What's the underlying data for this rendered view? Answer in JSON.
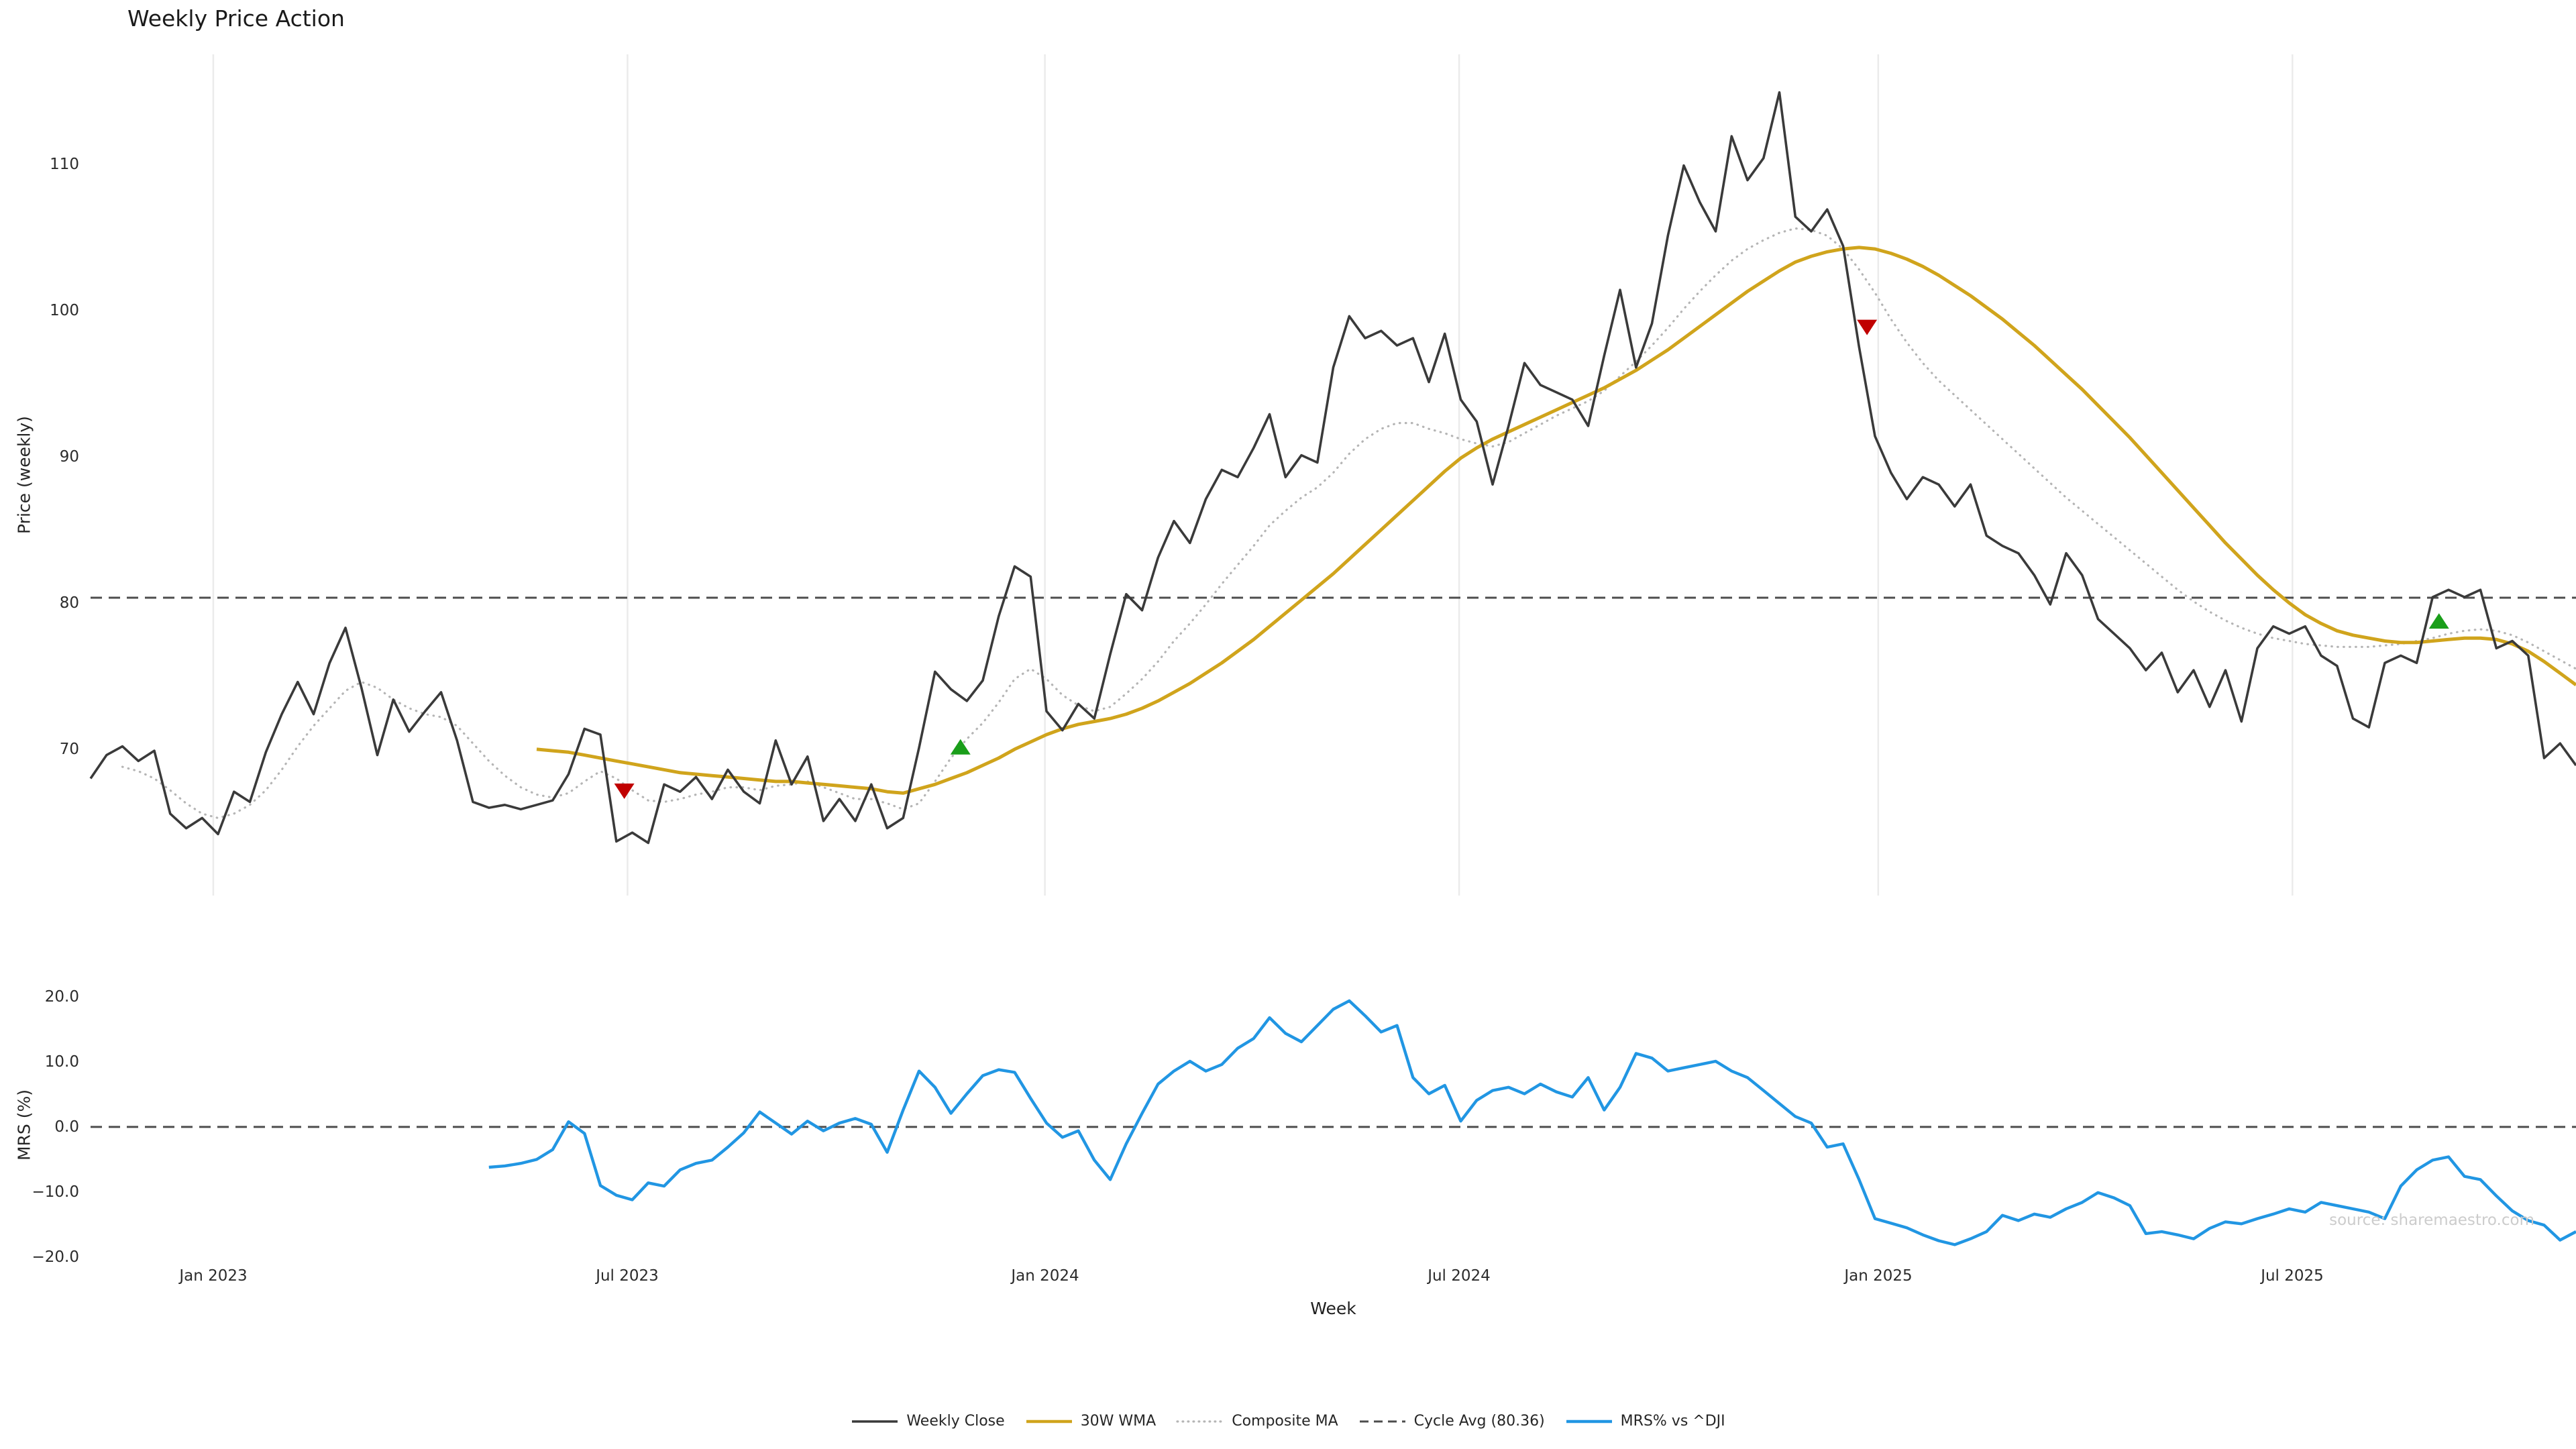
{
  "title": "Weekly Price Action",
  "source_text": "source: sharemaestro.com",
  "chart_data": {
    "type": "line",
    "title": "Weekly Price Action",
    "xlabel": "Week",
    "x_unit": "week-index",
    "x_range": [
      0,
      156
    ],
    "grid_color": "#ebebeb",
    "background": "#ffffff",
    "legend_position": "bottom-center",
    "x_ticks": [
      {
        "label": "Jan 2023",
        "week": 7.7
      },
      {
        "label": "Jul 2023",
        "week": 33.7
      },
      {
        "label": "Jan 2024",
        "week": 59.9
      },
      {
        "label": "Jul 2024",
        "week": 85.9
      },
      {
        "label": "Jan 2025",
        "week": 112.2
      },
      {
        "label": "Jul 2025",
        "week": 138.2
      }
    ],
    "panels": [
      {
        "id": "price",
        "ylabel": "Price (weekly)",
        "ylim": [
          60.0,
          117.5
        ],
        "yticks": [
          {
            "value": 70,
            "label": "70"
          },
          {
            "value": 80,
            "label": "80"
          },
          {
            "value": 90,
            "label": "90"
          },
          {
            "value": 100,
            "label": "100"
          },
          {
            "value": 110,
            "label": "110"
          }
        ],
        "hlines": [
          {
            "id": "cycle-avg-line",
            "name": "Cycle Avg (80.36)",
            "value": 80.36,
            "color": "#4d4d4d",
            "width": 3,
            "dash": "17 10"
          }
        ],
        "series": [
          {
            "id": "weekly-close-line",
            "name": "Weekly Close",
            "color": "#3a3a3a",
            "width": 3.6,
            "dash": "",
            "z": 3,
            "start_week": 0,
            "values": [
              68.0,
              69.6,
              70.2,
              69.2,
              69.9,
              65.6,
              64.6,
              65.3,
              64.2,
              67.1,
              66.4,
              69.8,
              72.4,
              74.6,
              72.4,
              75.9,
              78.3,
              74.2,
              69.6,
              73.4,
              71.2,
              72.6,
              73.9,
              70.6,
              66.4,
              66.0,
              66.2,
              65.9,
              66.2,
              66.5,
              68.3,
              71.4,
              71.0,
              63.7,
              64.3,
              63.6,
              67.6,
              67.1,
              68.1,
              66.6,
              68.6,
              67.1,
              66.3,
              70.6,
              67.6,
              69.5,
              65.1,
              66.6,
              65.1,
              67.6,
              64.6,
              65.3,
              70.1,
              75.3,
              74.1,
              73.3,
              74.7,
              79.1,
              82.5,
              81.8,
              72.6,
              71.3,
              73.1,
              72.1,
              76.5,
              80.6,
              79.5,
              83.1,
              85.6,
              84.1,
              87.1,
              89.1,
              88.6,
              90.6,
              92.9,
              88.6,
              90.1,
              89.6,
              96.1,
              99.6,
              98.1,
              98.6,
              97.6,
              98.1,
              95.1,
              98.4,
              93.9,
              92.4,
              88.1,
              92.1,
              96.4,
              94.9,
              94.4,
              93.9,
              92.1,
              96.9,
              101.4,
              96.1,
              99.1,
              105.1,
              109.9,
              107.4,
              105.4,
              111.9,
              108.9,
              110.4,
              114.9,
              106.4,
              105.4,
              106.9,
              104.4,
              97.5,
              91.4,
              88.9,
              87.1,
              88.6,
              88.1,
              86.6,
              88.1,
              84.6,
              83.9,
              83.4,
              81.9,
              79.9,
              83.4,
              81.9,
              78.9,
              77.9,
              76.9,
              75.4,
              76.6,
              73.9,
              75.4,
              72.9,
              75.4,
              71.9,
              76.9,
              78.4,
              77.9,
              78.4,
              76.4,
              75.7,
              72.1,
              71.5,
              75.9,
              76.4,
              75.9,
              80.4,
              80.9,
              80.4,
              80.9,
              76.9,
              77.4,
              76.4,
              69.4,
              70.4,
              68.9
            ]
          },
          {
            "id": "wma-30w-line",
            "name": "30W WMA",
            "color": "#d0a41c",
            "width": 5,
            "dash": "",
            "z": 2,
            "start_week": 28,
            "values": [
              70.0,
              69.9,
              69.8,
              69.6,
              69.4,
              69.2,
              69.0,
              68.8,
              68.6,
              68.4,
              68.3,
              68.2,
              68.1,
              68.0,
              67.9,
              67.8,
              67.8,
              67.7,
              67.6,
              67.5,
              67.4,
              67.3,
              67.1,
              67.0,
              67.3,
              67.6,
              68.0,
              68.4,
              68.9,
              69.4,
              70.0,
              70.5,
              71.0,
              71.4,
              71.7,
              71.9,
              72.1,
              72.4,
              72.8,
              73.3,
              73.9,
              74.5,
              75.2,
              75.9,
              76.7,
              77.5,
              78.4,
              79.3,
              80.2,
              81.1,
              82.0,
              83.0,
              84.0,
              85.0,
              86.0,
              87.0,
              88.0,
              89.0,
              89.9,
              90.6,
              91.2,
              91.7,
              92.2,
              92.7,
              93.2,
              93.7,
              94.2,
              94.7,
              95.3,
              95.9,
              96.6,
              97.3,
              98.1,
              98.9,
              99.7,
              100.5,
              101.3,
              102.0,
              102.7,
              103.3,
              103.7,
              104.0,
              104.2,
              104.3,
              104.2,
              103.9,
              103.5,
              103.0,
              102.4,
              101.7,
              101.0,
              100.2,
              99.4,
              98.5,
              97.6,
              96.6,
              95.6,
              94.6,
              93.5,
              92.4,
              91.3,
              90.1,
              88.9,
              87.7,
              86.5,
              85.3,
              84.1,
              83.0,
              81.9,
              80.9,
              80.0,
              79.2,
              78.6,
              78.1,
              77.8,
              77.6,
              77.4,
              77.3,
              77.3,
              77.4,
              77.5,
              77.6,
              77.6,
              77.5,
              77.2,
              76.7,
              76.0,
              75.2,
              74.4
            ]
          },
          {
            "id": "composite-ma-line",
            "name": "Composite MA",
            "color": "#b5b5b5",
            "width": 3.2,
            "dash": "0.6 8.4",
            "z": 1,
            "start_week": 2,
            "values": [
              68.8,
              68.5,
              68.0,
              67.2,
              66.3,
              65.6,
              65.3,
              65.6,
              66.2,
              67.2,
              68.6,
              70.2,
              71.6,
              72.8,
              74.0,
              74.6,
              74.2,
              73.4,
              72.8,
              72.4,
              72.2,
              71.6,
              70.4,
              69.2,
              68.2,
              67.4,
              66.9,
              66.7,
              67.0,
              67.8,
              68.5,
              68.0,
              67.2,
              66.5,
              66.4,
              66.6,
              66.9,
              67.1,
              67.4,
              67.4,
              67.2,
              67.5,
              67.6,
              67.8,
              67.4,
              67.0,
              66.6,
              66.6,
              66.3,
              65.9,
              66.3,
              67.8,
              69.4,
              70.7,
              71.8,
              73.2,
              74.8,
              75.5,
              74.8,
              73.7,
              73.0,
              72.6,
              72.9,
              73.8,
              74.8,
              76.0,
              77.4,
              78.6,
              79.9,
              81.3,
              82.6,
              83.9,
              85.3,
              86.3,
              87.2,
              87.9,
              88.9,
              90.2,
              91.2,
              91.9,
              92.3,
              92.3,
              91.9,
              91.6,
              91.2,
              90.9,
              90.7,
              91.0,
              91.6,
              92.2,
              92.8,
              93.3,
              93.8,
              94.5,
              95.5,
              96.5,
              97.6,
              98.8,
              100.1,
              101.3,
              102.4,
              103.4,
              104.2,
              104.8,
              105.3,
              105.6,
              105.5,
              105.1,
              104.2,
              102.8,
              101.2,
              99.4,
              97.8,
              96.4,
              95.2,
              94.2,
              93.2,
              92.2,
              91.2,
              90.2,
              89.2,
              88.2,
              87.2,
              86.3,
              85.4,
              84.5,
              83.6,
              82.7,
              81.8,
              80.9,
              80.1,
              79.4,
              78.8,
              78.3,
              77.9,
              77.6,
              77.4,
              77.2,
              77.1,
              77.0,
              77.0,
              77.0,
              77.1,
              77.2,
              77.4,
              77.6,
              77.9,
              78.1,
              78.2,
              78.1,
              77.8,
              77.3,
              76.7,
              76.1,
              75.5
            ]
          }
        ],
        "signals": {
          "buy": {
            "color": "#1a9e1a",
            "points": [
              {
                "week": 54.6,
                "price": 70.1
              },
              {
                "week": 147.4,
                "price": 78.7
              }
            ]
          },
          "sell": {
            "color": "#c00000",
            "points": [
              {
                "week": 33.5,
                "price": 67.2
              },
              {
                "week": 111.5,
                "price": 98.9
              }
            ]
          }
        }
      },
      {
        "id": "mrs",
        "ylabel": "MRS (%)",
        "ylim": [
          -22.5,
          23.0
        ],
        "yticks": [
          {
            "value": 20,
            "label": "20.0"
          },
          {
            "value": 10,
            "label": "10.0"
          },
          {
            "value": 0,
            "label": "0.0"
          },
          {
            "value": -10,
            "label": "−10.0"
          },
          {
            "value": -20,
            "label": "−20.0"
          }
        ],
        "hlines": [
          {
            "id": "zero-line",
            "name": "",
            "value": 0,
            "color": "#4d4d4d",
            "width": 3,
            "dash": "17 10"
          }
        ],
        "series": [
          {
            "id": "mrs-line",
            "name": "MRS% vs ^DJI",
            "color": "#2196e3",
            "width": 4.4,
            "dash": "",
            "z": 1,
            "start_week": 25,
            "values": [
              -6.2,
              -6.0,
              -5.6,
              -5.0,
              -3.5,
              0.8,
              -1.0,
              -9.0,
              -10.5,
              -11.2,
              -8.6,
              -9.1,
              -6.6,
              -5.6,
              -5.1,
              -3.1,
              -0.9,
              2.3,
              0.6,
              -1.1,
              0.9,
              -0.6,
              0.6,
              1.3,
              0.4,
              -3.9,
              2.6,
              8.6,
              6.1,
              2.1,
              5.1,
              7.9,
              8.8,
              8.4,
              4.4,
              0.6,
              -1.6,
              -0.6,
              -5.1,
              -8.1,
              -2.6,
              2.1,
              6.6,
              8.6,
              10.1,
              8.6,
              9.6,
              12.1,
              13.6,
              16.8,
              14.4,
              13.1,
              15.6,
              18.1,
              19.4,
              17.1,
              14.6,
              15.6,
              7.6,
              5.1,
              6.4,
              0.9,
              4.1,
              5.6,
              6.1,
              5.1,
              6.6,
              5.4,
              4.6,
              7.6,
              2.6,
              6.1,
              11.3,
              10.6,
              8.6,
              9.1,
              9.6,
              10.1,
              8.6,
              7.6,
              5.6,
              3.6,
              1.6,
              0.6,
              -3.1,
              -2.6,
              -8.1,
              -14.1,
              -14.8,
              -15.5,
              -16.6,
              -17.5,
              -18.1,
              -17.2,
              -16.1,
              -13.6,
              -14.4,
              -13.4,
              -13.9,
              -12.6,
              -11.6,
              -10.1,
              -10.9,
              -12.1,
              -16.4,
              -16.1,
              -16.6,
              -17.2,
              -15.6,
              -14.6,
              -14.9,
              -14.1,
              -13.4,
              -12.6,
              -13.1,
              -11.6,
              -12.1,
              -12.6,
              -13.1,
              -14.1,
              -9.1,
              -6.6,
              -5.1,
              -4.6,
              -7.6,
              -8.1,
              -10.6,
              -12.9,
              -14.4,
              -15.1,
              -17.4,
              -16.1
            ]
          }
        ]
      }
    ]
  }
}
